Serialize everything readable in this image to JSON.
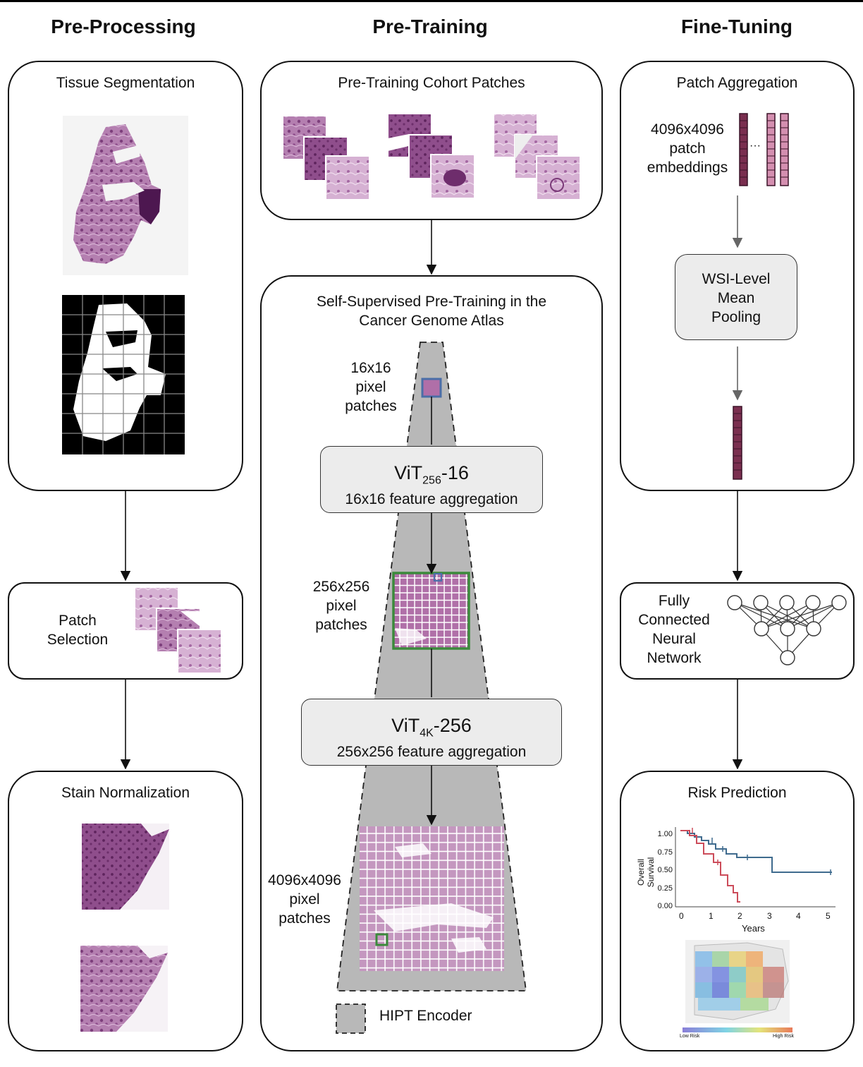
{
  "columns": {
    "preprocessing": "Pre-Processing",
    "pretraining": "Pre-Training",
    "finetuning": "Fine-Tuning"
  },
  "preprocessing": {
    "tissue_segmentation": "Tissue Segmentation",
    "patch_selection": "Patch Selection",
    "stain_normalization": "Stain Normalization"
  },
  "pretraining": {
    "cohort_patches": "Pre-Training Cohort Patches",
    "ssl_title_line1": "Self-Supervised Pre-Training in the",
    "ssl_title_line2": "Cancer Genome Atlas",
    "label_16": [
      "16x16",
      "pixel",
      "patches"
    ],
    "label_256": [
      "256x256",
      "pixel",
      "patches"
    ],
    "label_4096": [
      "4096x4096",
      "pixel",
      "patches"
    ],
    "vit1": {
      "base": "ViT",
      "sub": "256",
      "suffix": "-16",
      "desc": "16x16 feature aggregation"
    },
    "vit2": {
      "base": "ViT",
      "sub": "4K",
      "suffix": "-256",
      "desc": "256x256 feature aggregation"
    },
    "legend": "HIPT Encoder"
  },
  "finetuning": {
    "patch_aggregation": "Patch Aggregation",
    "embeddings_label": [
      "4096x4096",
      "patch",
      "embeddings"
    ],
    "ellipsis": "···",
    "pooling": [
      "WSI-Level",
      "Mean",
      "Pooling"
    ],
    "fcnn": [
      "Fully",
      "Connected",
      "Neural",
      "Network"
    ],
    "risk_prediction": "Risk Prediction",
    "km_ylabel": "Overall Survival",
    "km_xlabel": "Years",
    "km_yticks": [
      "1.00",
      "0.75",
      "0.50",
      "0.25",
      "0.00"
    ],
    "km_xticks": [
      "0",
      "1",
      "2",
      "3",
      "4",
      "5"
    ],
    "heat_low": "Low Risk",
    "heat_high": "High Risk"
  },
  "colors": {
    "tissue": "#9c5c98",
    "embedding": "#7a2e4f",
    "embedding_light": "#d48fb0",
    "blue_curve": "#3f6b8e",
    "red_curve": "#cc4c5a",
    "green_box": "#3b8a3b"
  }
}
